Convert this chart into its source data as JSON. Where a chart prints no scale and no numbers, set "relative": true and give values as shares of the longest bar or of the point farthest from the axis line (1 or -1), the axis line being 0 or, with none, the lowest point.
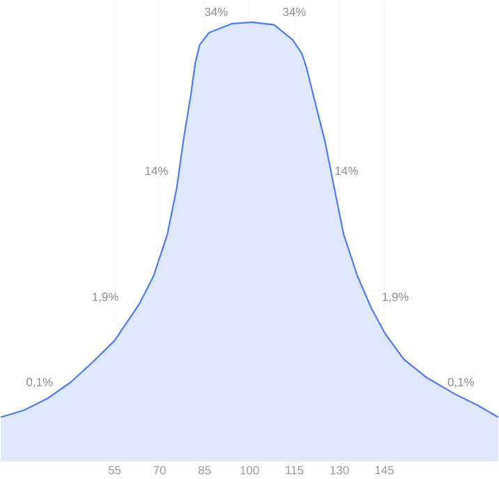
{
  "chart_data": {
    "type": "area",
    "relative": true,
    "x": [
      17,
      24.7,
      32.4,
      40.2,
      47.9,
      54.9,
      63.3,
      68,
      72.6,
      75.7,
      78.1,
      80.4,
      81.9,
      83.4,
      86.5,
      94.3,
      100.9,
      108.2,
      114.4,
      117.5,
      119,
      122.1,
      125.2,
      128.3,
      131.4,
      136,
      140.7,
      145.3,
      151.5,
      159.2,
      168.5,
      176.2,
      183
    ],
    "series": [
      {
        "color": "#4a7cf0",
        "values": [
          0.1,
          0.116,
          0.142,
          0.179,
          0.227,
          0.274,
          0.359,
          0.422,
          0.517,
          0.622,
          0.738,
          0.833,
          0.907,
          0.949,
          0.976,
          0.997,
          1.0,
          0.994,
          0.96,
          0.928,
          0.897,
          0.812,
          0.728,
          0.622,
          0.517,
          0.422,
          0.348,
          0.29,
          0.232,
          0.19,
          0.153,
          0.127,
          0.1
        ]
      }
    ],
    "xlim": [
      17,
      183
    ],
    "xticks": [
      55,
      70,
      85,
      100,
      115,
      130,
      145
    ],
    "grid": "x",
    "annotations": [
      "34%",
      "34%",
      "14%",
      "14%",
      "1,9%",
      "1,9%",
      "0,1%",
      "0,1%"
    ]
  }
}
